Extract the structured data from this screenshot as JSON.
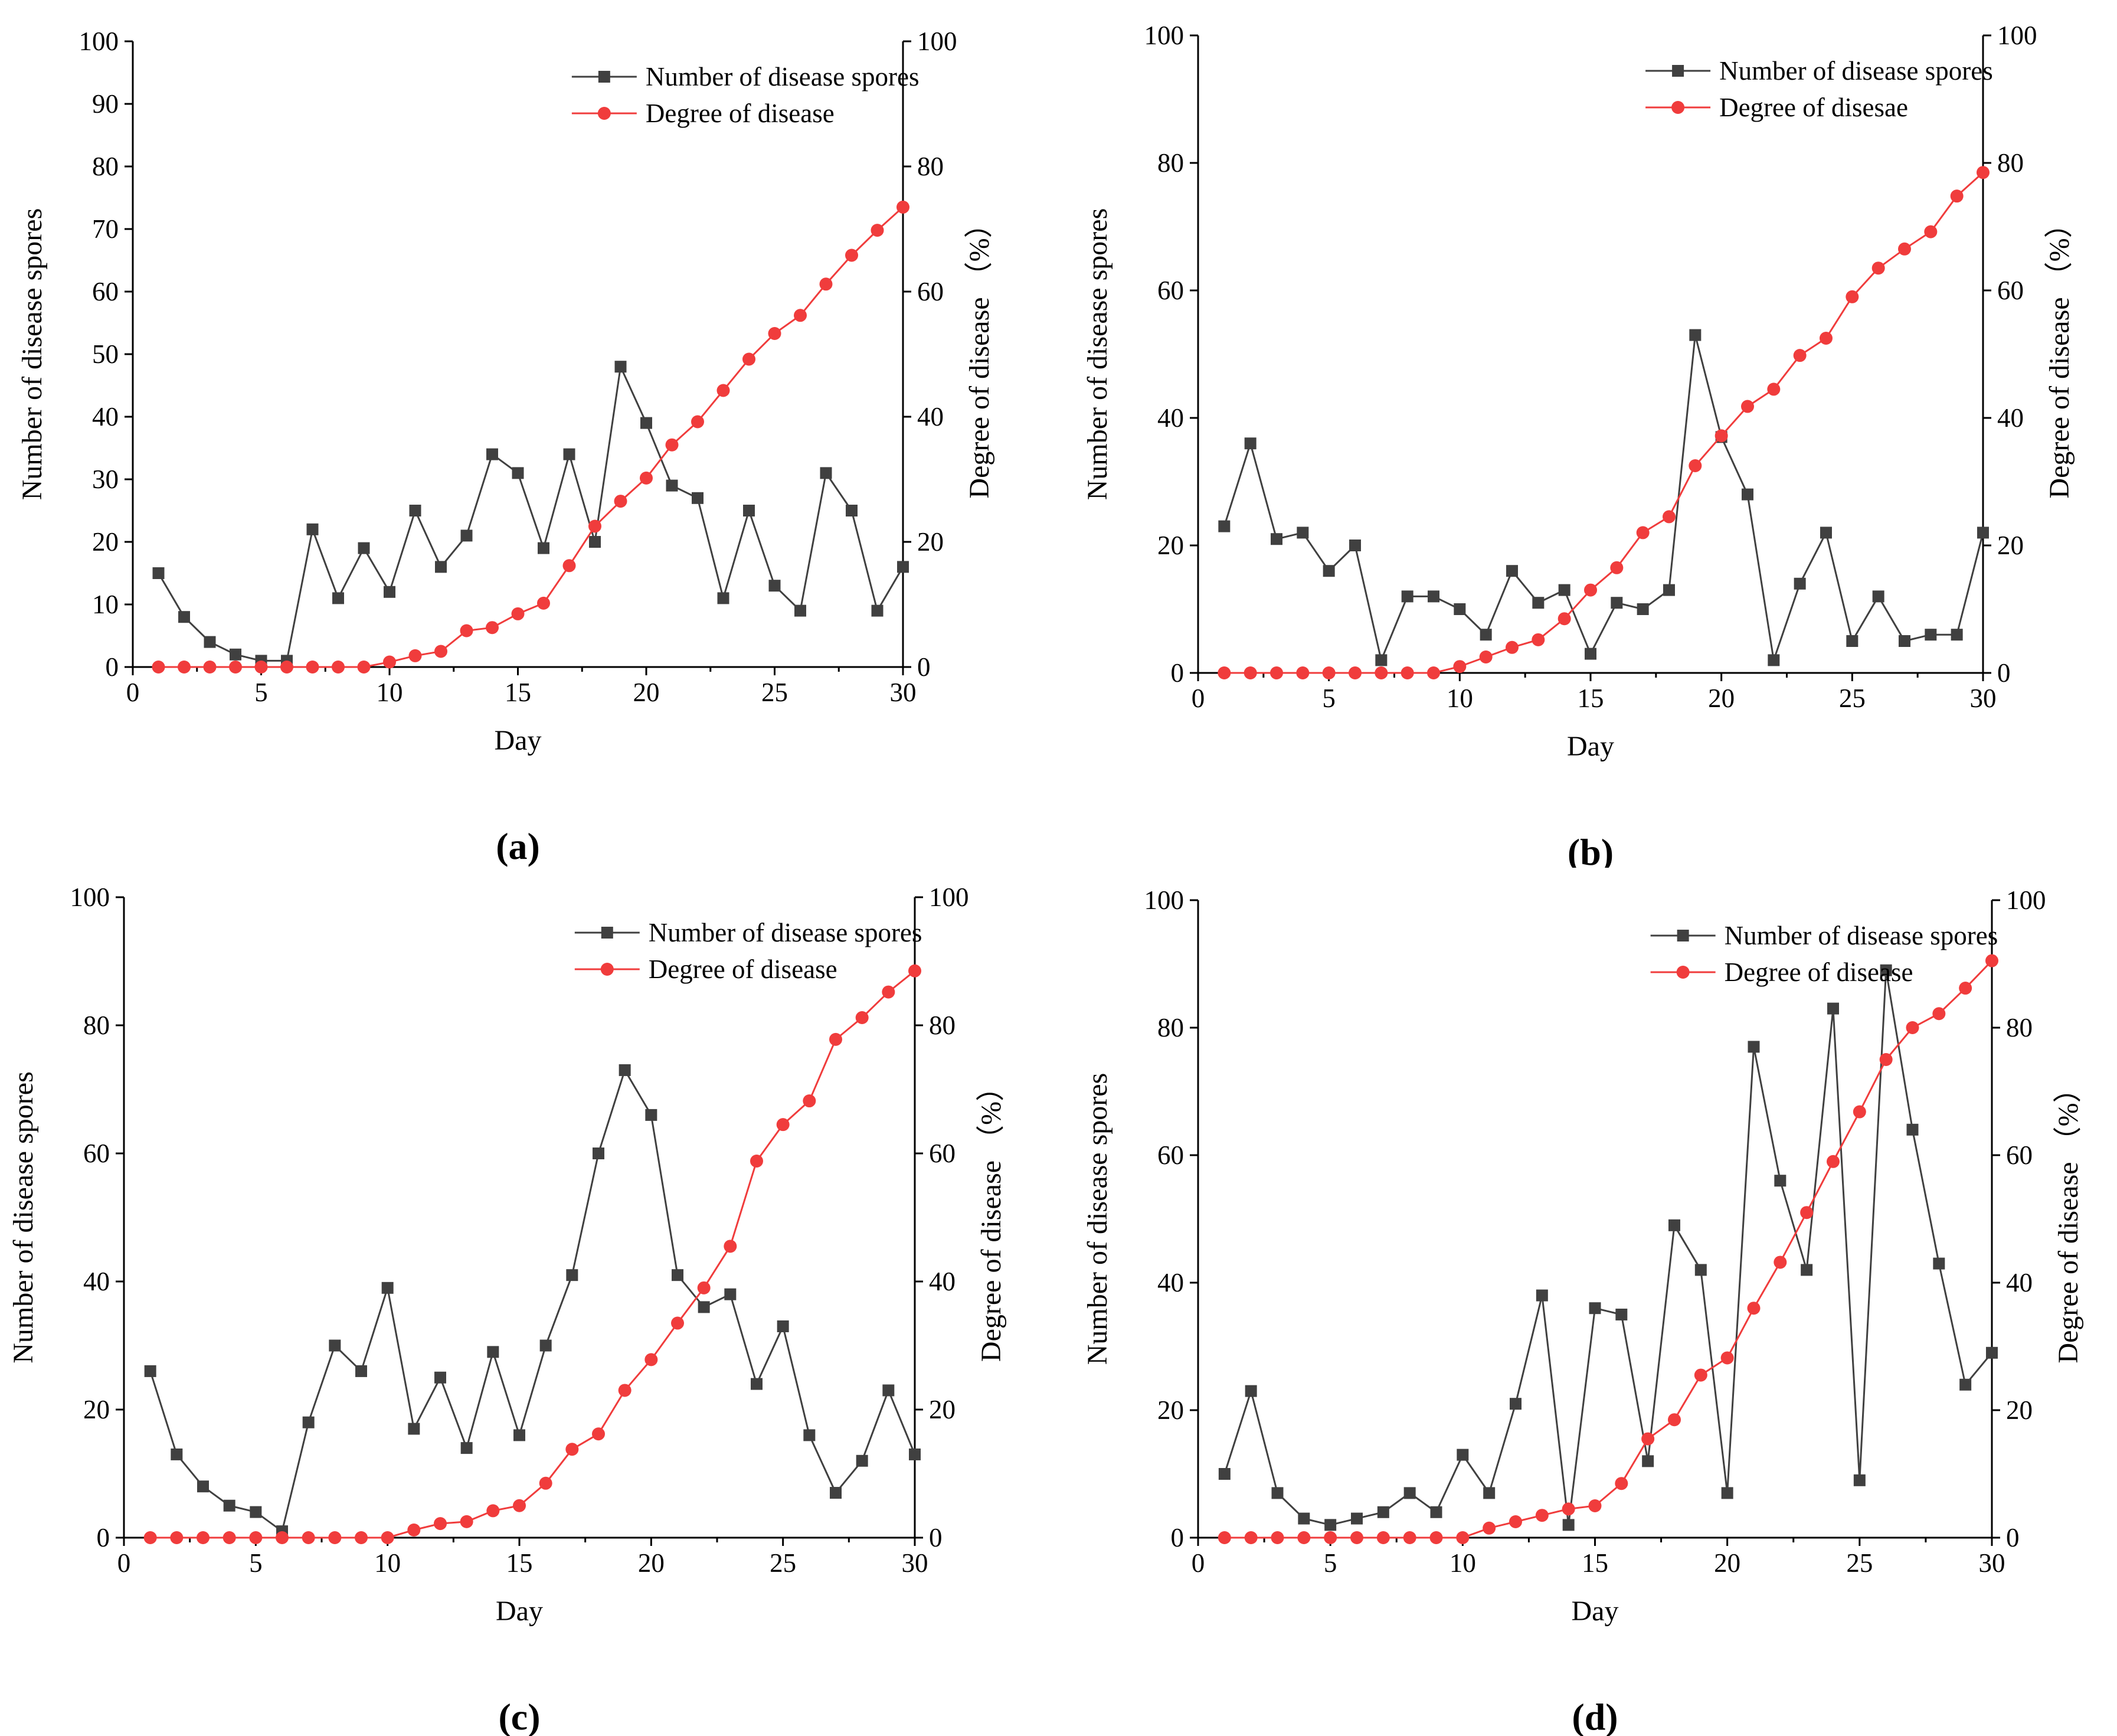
{
  "chart_data": [
    {
      "type": "line",
      "caption": "(a)",
      "xlabel": "Day",
      "ylabel": "Number of disease spores",
      "y2label": "Degree of disease （%）",
      "xlim": [
        0,
        30
      ],
      "ylim": [
        0,
        100
      ],
      "y2lim": [
        0,
        100
      ],
      "xticks": [
        0,
        5,
        10,
        15,
        20,
        25,
        30
      ],
      "yticks": [
        0,
        10,
        20,
        30,
        40,
        50,
        60,
        70,
        80,
        90,
        100
      ],
      "y2ticks": [
        0,
        20,
        40,
        60,
        80,
        100
      ],
      "series": [
        {
          "name": "Number of disease spores",
          "axis": "left",
          "color": "#404040",
          "marker": "square",
          "x": [
            1,
            2,
            3,
            4,
            5,
            6,
            7,
            8,
            9,
            10,
            11,
            12,
            13,
            14,
            15,
            16,
            17,
            18,
            19,
            20,
            21,
            22,
            23,
            24,
            25,
            26,
            27,
            28,
            29,
            30
          ],
          "values": [
            15,
            8,
            4,
            2,
            1,
            1,
            22,
            11,
            19,
            12,
            25,
            16,
            21,
            34,
            31,
            19,
            34,
            20,
            48,
            39,
            29,
            27,
            11,
            25,
            13,
            9,
            31,
            25,
            9,
            16
          ]
        },
        {
          "name": "Degree of disease",
          "axis": "right",
          "color": "#f03c3c",
          "marker": "circle",
          "x": [
            1,
            2,
            3,
            4,
            5,
            6,
            7,
            8,
            9,
            10,
            11,
            12,
            13,
            14,
            15,
            16,
            17,
            18,
            19,
            20,
            21,
            22,
            23,
            24,
            25,
            26,
            27,
            28,
            29,
            30
          ],
          "values": [
            0,
            0,
            0,
            0,
            0,
            0,
            0,
            0,
            0,
            0.8,
            1.8,
            2.5,
            5.8,
            6.3,
            8.5,
            10.2,
            16.2,
            22.5,
            26.5,
            30.2,
            35.5,
            39.2,
            44.2,
            49.2,
            53.3,
            56.2,
            61.2,
            65.8,
            69.8,
            73.5
          ]
        }
      ]
    },
    {
      "type": "line",
      "caption": "(b)",
      "xlabel": "Day",
      "ylabel": "Number of disease spores",
      "y2label": "Degree of disease （%）",
      "xlim": [
        0,
        30
      ],
      "ylim": [
        0,
        100
      ],
      "y2lim": [
        0,
        100
      ],
      "xticks": [
        0,
        5,
        10,
        15,
        20,
        25,
        30
      ],
      "yticks": [
        0,
        20,
        40,
        60,
        80,
        100
      ],
      "y2ticks": [
        0,
        20,
        40,
        60,
        80,
        100
      ],
      "series": [
        {
          "name": "Number of disease spores",
          "axis": "left",
          "color": "#404040",
          "marker": "square",
          "x": [
            1,
            2,
            3,
            4,
            5,
            6,
            7,
            8,
            9,
            10,
            11,
            12,
            13,
            14,
            15,
            16,
            17,
            18,
            19,
            20,
            21,
            22,
            23,
            24,
            25,
            26,
            27,
            28,
            29,
            30
          ],
          "values": [
            23,
            36,
            21,
            22,
            16,
            20,
            2,
            12,
            12,
            10,
            6,
            16,
            11,
            13,
            3,
            11,
            10,
            13,
            53,
            37,
            28,
            2,
            14,
            22,
            5,
            12,
            5,
            6,
            6,
            22
          ]
        },
        {
          "name": "Degree of disesae",
          "axis": "right",
          "color": "#f03c3c",
          "marker": "circle",
          "x": [
            1,
            2,
            3,
            4,
            5,
            6,
            7,
            8,
            9,
            10,
            11,
            12,
            13,
            14,
            15,
            16,
            17,
            18,
            19,
            20,
            21,
            22,
            23,
            24,
            25,
            26,
            27,
            28,
            29,
            30
          ],
          "values": [
            0,
            0,
            0,
            0,
            0,
            0,
            0,
            0,
            0,
            1,
            2.5,
            4,
            5.2,
            8.5,
            13,
            16.5,
            22,
            24.5,
            32.5,
            37.2,
            41.8,
            44.5,
            49.8,
            52.5,
            59,
            63.5,
            66.5,
            69.2,
            74.8,
            78.5
          ]
        }
      ]
    },
    {
      "type": "line",
      "caption": "(c)",
      "xlabel": "Day",
      "ylabel": "Number of disease spores",
      "y2label": "Degree of disease （%）",
      "xlim": [
        0,
        30
      ],
      "ylim": [
        0,
        100
      ],
      "y2lim": [
        0,
        100
      ],
      "xticks": [
        0,
        5,
        10,
        15,
        20,
        25,
        30
      ],
      "yticks": [
        0,
        20,
        40,
        60,
        80,
        100
      ],
      "y2ticks": [
        0,
        20,
        40,
        60,
        80,
        100
      ],
      "series": [
        {
          "name": "Number of disease spores",
          "axis": "left",
          "color": "#404040",
          "marker": "square",
          "x": [
            1,
            2,
            3,
            4,
            5,
            6,
            7,
            8,
            9,
            10,
            11,
            12,
            13,
            14,
            15,
            16,
            17,
            18,
            19,
            20,
            21,
            22,
            23,
            24,
            25,
            26,
            27,
            28,
            29,
            30
          ],
          "values": [
            26,
            13,
            8,
            5,
            4,
            1,
            18,
            30,
            26,
            39,
            17,
            25,
            14,
            29,
            16,
            30,
            41,
            60,
            73,
            66,
            41,
            36,
            38,
            24,
            33,
            16,
            7,
            12,
            23,
            13
          ]
        },
        {
          "name": "Degree of disease",
          "axis": "right",
          "color": "#f03c3c",
          "marker": "circle",
          "x": [
            1,
            2,
            3,
            4,
            5,
            6,
            7,
            8,
            9,
            10,
            11,
            12,
            13,
            14,
            15,
            16,
            17,
            18,
            19,
            20,
            21,
            22,
            23,
            24,
            25,
            26,
            27,
            28,
            29,
            30
          ],
          "values": [
            0,
            0,
            0,
            0,
            0,
            0,
            0,
            0,
            0,
            0,
            1.2,
            2.2,
            2.5,
            4.2,
            5,
            8.5,
            13.8,
            16.2,
            23,
            27.8,
            33.5,
            39,
            45.5,
            58.8,
            64.5,
            68.2,
            77.8,
            81.2,
            85.2,
            88.5
          ]
        }
      ]
    },
    {
      "type": "line",
      "caption": "(d)",
      "xlabel": "Day",
      "ylabel": "Number of disease spores",
      "y2label": "Degree of disease （%）",
      "xlim": [
        0,
        30
      ],
      "ylim": [
        0,
        100
      ],
      "y2lim": [
        0,
        100
      ],
      "xticks": [
        0,
        5,
        10,
        15,
        20,
        25,
        30
      ],
      "yticks": [
        0,
        20,
        40,
        60,
        80,
        100
      ],
      "y2ticks": [
        0,
        20,
        40,
        60,
        80,
        100
      ],
      "series": [
        {
          "name": "Number of disease spores",
          "axis": "left",
          "color": "#404040",
          "marker": "square",
          "x": [
            1,
            2,
            3,
            4,
            5,
            6,
            7,
            8,
            9,
            10,
            11,
            12,
            13,
            14,
            15,
            16,
            17,
            18,
            19,
            20,
            21,
            22,
            23,
            24,
            25,
            26,
            27,
            28,
            29,
            30
          ],
          "values": [
            10,
            23,
            7,
            3,
            2,
            3,
            4,
            7,
            4,
            13,
            7,
            21,
            38,
            2,
            36,
            35,
            12,
            49,
            42,
            7,
            77,
            56,
            42,
            83,
            9,
            89,
            64,
            43,
            24,
            29
          ]
        },
        {
          "name": "Degree of disease",
          "axis": "right",
          "color": "#f03c3c",
          "marker": "circle",
          "x": [
            1,
            2,
            3,
            4,
            5,
            6,
            7,
            8,
            9,
            10,
            11,
            12,
            13,
            14,
            15,
            16,
            17,
            18,
            19,
            20,
            21,
            22,
            23,
            24,
            25,
            26,
            27,
            28,
            29,
            30
          ],
          "values": [
            0,
            0,
            0,
            0,
            0,
            0,
            0,
            0,
            0,
            0,
            1.5,
            2.5,
            3.5,
            4.5,
            5,
            8.5,
            15.5,
            18.5,
            25.5,
            28.2,
            36,
            43.2,
            51,
            59,
            66.8,
            75,
            80,
            82.2,
            86.2,
            90.5
          ]
        }
      ]
    }
  ]
}
